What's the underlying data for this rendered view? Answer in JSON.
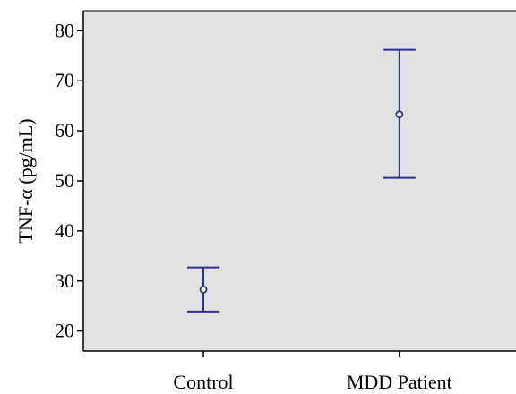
{
  "chart_data": {
    "type": "scatter",
    "title": "",
    "xlabel": "",
    "ylabel": "TNF-α (pg/mL)",
    "ylim": [
      16,
      84
    ],
    "yticks": [
      20,
      30,
      40,
      50,
      60,
      70,
      80
    ],
    "grid": false,
    "categories": [
      "Control",
      "MDD Patient"
    ],
    "series": [
      {
        "means": [
          28.3,
          63.3
        ],
        "lower": [
          23.9,
          50.6
        ],
        "upper": [
          32.7,
          76.2
        ]
      }
    ],
    "colors": {
      "marks": "#2e3192",
      "plot_bg": "#e1e1e1",
      "axis": "#000000"
    }
  }
}
